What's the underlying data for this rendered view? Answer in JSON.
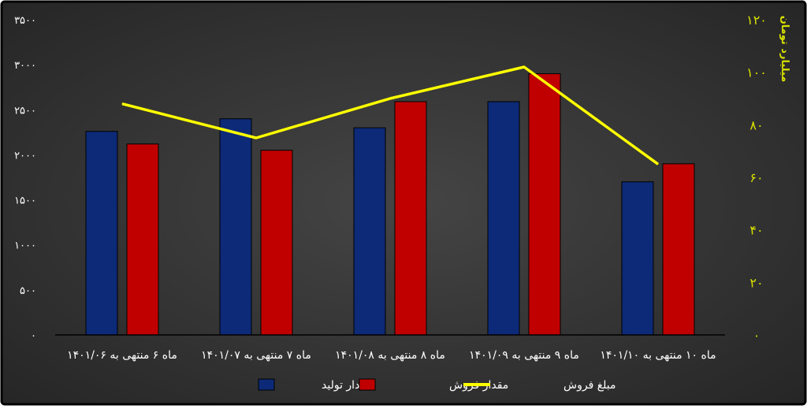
{
  "chart_data": {
    "type": "bar",
    "categories": [
      "ماه ۶ منتهی به ۱۴۰۱/۰۶",
      "ماه ۷ منتهی به ۱۴۰۱/۰۷",
      "ماه ۸ منتهی به ۱۴۰۱/۰۸",
      "ماه ۹ منتهی به ۱۴۰۱/۰۹",
      "ماه ۱۰ منتهی به ۱۴۰۱/۱۰"
    ],
    "series": [
      {
        "name": "مقدار تولید",
        "type": "bar",
        "axis": "left",
        "color": "#0d2a78",
        "values": [
          2260,
          2400,
          2300,
          2590,
          1700
        ]
      },
      {
        "name": "مقدار فروش",
        "type": "bar",
        "axis": "left",
        "color": "#c00000",
        "values": [
          2120,
          2050,
          2590,
          2900,
          1900
        ]
      },
      {
        "name": "مبلغ فروش",
        "type": "line",
        "axis": "right",
        "color": "#ffff00",
        "values": [
          88,
          75,
          90,
          102,
          65
        ]
      }
    ],
    "y_left": {
      "ylim": [
        0,
        3500
      ],
      "ticks": [
        "۰",
        "۵۰۰",
        "۱۰۰۰",
        "۱۵۰۰",
        "۲۰۰۰",
        "۲۵۰۰",
        "۳۰۰۰",
        "۳۵۰۰"
      ],
      "tick_values": [
        0,
        500,
        1000,
        1500,
        2000,
        2500,
        3000,
        3500
      ]
    },
    "y_right": {
      "label": "میلیارد تومان",
      "ylim": [
        0,
        120
      ],
      "ticks": [
        "۰",
        "۲۰",
        "۴۰",
        "۶۰",
        "۸۰",
        "۱۰۰",
        "۱۲۰"
      ],
      "tick_values": [
        0,
        20,
        40,
        60,
        80,
        100,
        120
      ],
      "color": "#d8e000"
    },
    "legend": {
      "placement": "bottom-center",
      "entries": [
        "مقدار تولید",
        "مقدار فروش",
        "مبلغ فروش"
      ]
    },
    "grid": false,
    "background": "#3c3c3c",
    "text_color": "#ffffff"
  }
}
